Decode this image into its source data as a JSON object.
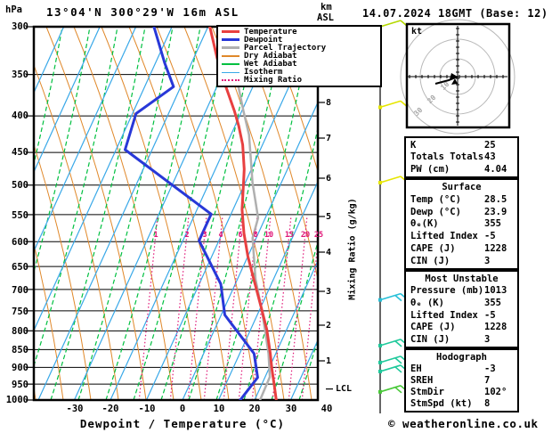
{
  "header": {
    "pressure_unit": "hPa",
    "station_title": "13°04'N 300°29'W 16m ASL",
    "altitude_unit_line1": "km",
    "altitude_unit_line2": "ASL",
    "datetime": "14.07.2024 18GMT (Base: 12)",
    "watermark": "© weatheronline.co.uk"
  },
  "legend": {
    "items": [
      {
        "label": "Temperature",
        "color": "#e84040",
        "style": "thick"
      },
      {
        "label": "Dewpoint",
        "color": "#2838d8",
        "style": "thick"
      },
      {
        "label": "Parcel Trajectory",
        "color": "#b0b0b0",
        "style": "thick"
      },
      {
        "label": "Dry Adiabat",
        "color": "#e0882a",
        "style": "thin"
      },
      {
        "label": "Wet Adiabat",
        "color": "#00c040",
        "style": "thin"
      },
      {
        "label": "Isotherm",
        "color": "#38a8e8",
        "style": "thin"
      },
      {
        "label": "Mixing Ratio",
        "color": "#e01878",
        "style": "dotted"
      }
    ]
  },
  "axes": {
    "pressure_ticks": [
      300,
      350,
      400,
      450,
      500,
      550,
      600,
      650,
      700,
      750,
      800,
      850,
      900,
      950,
      1000
    ],
    "temp_ticks": [
      -30,
      -20,
      -10,
      0,
      10,
      20,
      30,
      40
    ],
    "temp_axis_label": "Dewpoint / Temperature (°C)",
    "km_ticks": [
      8,
      7,
      6,
      5,
      4,
      3,
      2,
      1
    ],
    "lcl_label": "LCL",
    "mixing_ratio_axis_label": "Mixing Ratio (g/kg)",
    "mixing_ratio_labels": [
      1,
      2,
      3,
      4,
      6,
      8,
      10,
      15,
      20,
      25
    ]
  },
  "hodograph": {
    "unit_label": "kt",
    "ring_labels": [
      "10",
      "20",
      "30"
    ]
  },
  "panels": [
    {
      "rows": [
        [
          "K",
          "25"
        ],
        [
          "Totals Totals",
          "43"
        ],
        [
          "PW (cm)",
          "4.04"
        ]
      ]
    },
    {
      "title": "Surface",
      "rows": [
        [
          "Temp (°C)",
          "28.5"
        ],
        [
          "Dewp (°C)",
          "23.9"
        ],
        [
          "θₑ(K)",
          "355"
        ],
        [
          "Lifted Index",
          "-5"
        ],
        [
          "CAPE (J)",
          "1228"
        ],
        [
          "CIN (J)",
          "3"
        ]
      ]
    },
    {
      "title": "Most Unstable",
      "rows": [
        [
          "Pressure (mb)",
          "1013"
        ],
        [
          "θₑ (K)",
          "355"
        ],
        [
          "Lifted Index",
          "-5"
        ],
        [
          "CAPE (J)",
          "1228"
        ],
        [
          "CIN (J)",
          "3"
        ]
      ]
    },
    {
      "title": "Hodograph",
      "rows": [
        [
          "EH",
          "-3"
        ],
        [
          "SREH",
          "7"
        ],
        [
          "StmDir",
          "102°"
        ],
        [
          "StmSpd (kt)",
          "8"
        ]
      ]
    }
  ],
  "chart_data": {
    "type": "line",
    "subtype": "skewt-logp-sounding",
    "title": "13°04'N 300°29'W 16m ASL",
    "xlabel": "Dewpoint / Temperature (°C)",
    "ylabel": "hPa",
    "xlim": [
      -40,
      40
    ],
    "ylim_hpa": [
      1000,
      300
    ],
    "skew": "isotherms slant right with height",
    "series": [
      {
        "name": "Temperature",
        "color": "#e84040",
        "width": 3,
        "pressure_hpa": [
          300,
          332,
          364,
          394,
          413,
          439,
          475,
          503,
          541,
          584,
          629,
          677,
          746,
          797,
          861,
          907,
          952,
          1000
        ],
        "temp_c": [
          -39.5,
          -33.5,
          -27.5,
          -22,
          -19,
          -15.5,
          -12,
          -10,
          -7.5,
          -4,
          0,
          4.5,
          10.5,
          14.5,
          18.5,
          21,
          23.5,
          26
        ]
      },
      {
        "name": "Dewpoint",
        "color": "#2838d8",
        "width": 3,
        "pressure_hpa": [
          300,
          337,
          364,
          397,
          446,
          549,
          598,
          688,
          760,
          861,
          930,
          1000
        ],
        "temp_c": [
          -55,
          -47.5,
          -42,
          -49,
          -47.5,
          -15.5,
          -15.5,
          -4,
          1,
          14,
          18,
          16
        ]
      },
      {
        "name": "Parcel Trajectory",
        "color": "#b0b0b0",
        "width": 2.5,
        "pressure_hpa": [
          300,
          364,
          394,
          425,
          459,
          496,
          530,
          556,
          593,
          677,
          746,
          797,
          861,
          928,
          1000
        ],
        "temp_c": [
          -32,
          -24,
          -19.5,
          -15,
          -11.5,
          -8,
          -4.5,
          -2,
          -1,
          5,
          10.5,
          14,
          18,
          21.3,
          21.5
        ]
      }
    ],
    "surface": {
      "temp_c": 28.5,
      "dewp_c": 23.9,
      "theta_e_k": 355,
      "lifted_index": -5,
      "cape_j": 1228,
      "cin_j": 3
    },
    "indices": {
      "k": 25,
      "totals_totals": 43,
      "pw_cm": 4.04
    },
    "most_unstable": {
      "pressure_mb": 1013,
      "theta_e_k": 355,
      "lifted_index": -5,
      "cape_j": 1228,
      "cin_j": 3
    },
    "hodograph_stats": {
      "eh": -3,
      "sreh": 7,
      "stm_dir_deg": 102,
      "stm_spd_kt": 8
    },
    "lcl_hpa": 965,
    "mixing_ratio_lines_gkg": [
      1,
      2,
      3,
      4,
      6,
      8,
      10,
      15,
      20,
      25
    ],
    "hodograph": {
      "rings_kt": [
        10,
        20,
        30
      ],
      "trace_kt": [
        [
          -12.5,
          -4
        ],
        [
          -5,
          -2
        ],
        [
          0,
          0
        ]
      ],
      "marker_kt": [
        -1.5,
        -3
      ]
    },
    "wind_barbs": [
      {
        "pressure_hpa": 300,
        "color": "#b4d800",
        "ticks": 1
      },
      {
        "pressure_hpa": 389,
        "color": "#e6e600",
        "ticks": 1
      },
      {
        "pressure_hpa": 496,
        "color": "#e6e600",
        "ticks": 1
      },
      {
        "pressure_hpa": 724,
        "color": "#28c0d8",
        "ticks": 2
      },
      {
        "pressure_hpa": 839,
        "color": "#1fc99b",
        "ticks": 2
      },
      {
        "pressure_hpa": 886,
        "color": "#1fc99b",
        "ticks": 2
      },
      {
        "pressure_hpa": 912,
        "color": "#1fc99b",
        "ticks": 2
      },
      {
        "pressure_hpa": 974,
        "color": "#48c838",
        "ticks": 2
      }
    ],
    "grid": {
      "pressure_lines_hpa": [
        350,
        400,
        450,
        500,
        550,
        600,
        650,
        700,
        750,
        800,
        850,
        900,
        950,
        1000
      ],
      "isotherm_step_c": 10,
      "legend_position": "top-right"
    }
  }
}
